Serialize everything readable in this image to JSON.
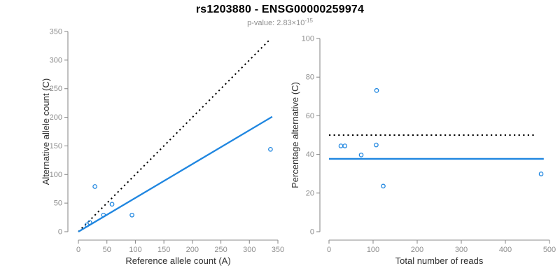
{
  "header": {
    "title": "rs1203880 - ENSG00000259974",
    "subtitle_prefix": "p-value: 2.83×10",
    "subtitle_exponent": "-15"
  },
  "colors": {
    "point": "#1f86e0",
    "fit_line": "#1f86e0",
    "reference_line": "#000000",
    "axis": "#8e8e8e",
    "tick_label": "#8e8e8e",
    "axis_title": "#2e2e2e",
    "subtitle": "#8e8e8e"
  },
  "chart_data": [
    {
      "type": "scatter",
      "xlabel": "Reference allele count (A)",
      "ylabel": "Alternative allele count (C)",
      "xlim": [
        0,
        350
      ],
      "ylim": [
        0,
        350
      ],
      "xticks": [
        0,
        50,
        100,
        150,
        200,
        250,
        300,
        350
      ],
      "yticks": [
        0,
        50,
        100,
        150,
        200,
        250,
        300,
        350
      ],
      "grid": false,
      "legend": "none",
      "points": [
        [
          15,
          12
        ],
        [
          20,
          16
        ],
        [
          29,
          79
        ],
        [
          44,
          29
        ],
        [
          59,
          48
        ],
        [
          94,
          29
        ],
        [
          337,
          144
        ]
      ],
      "lines": [
        {
          "name": "identity-line",
          "style": "dotted",
          "color": "#000000",
          "from": [
            0,
            0
          ],
          "to": [
            337,
            337
          ]
        },
        {
          "name": "fit-line",
          "style": "solid",
          "color": "#1f86e0",
          "from": [
            0,
            0
          ],
          "to": [
            340,
            201
          ]
        }
      ]
    },
    {
      "type": "scatter",
      "xlabel": "Total number of reads",
      "ylabel": "Percentage alternative (C)",
      "xlim": [
        0,
        500
      ],
      "ylim": [
        0,
        100
      ],
      "xticks": [
        0,
        100,
        200,
        300,
        400,
        500
      ],
      "yticks": [
        0,
        20,
        40,
        60,
        80,
        100
      ],
      "grid": false,
      "legend": "none",
      "points": [
        [
          27,
          44.4
        ],
        [
          36,
          44.4
        ],
        [
          73,
          39.7
        ],
        [
          107,
          44.9
        ],
        [
          108,
          73.1
        ],
        [
          123,
          23.6
        ],
        [
          481,
          29.9
        ]
      ],
      "lines": [
        {
          "name": "expected-percentage-line",
          "style": "dotted",
          "color": "#000000",
          "from": [
            0,
            50
          ],
          "to": [
            470,
            50
          ]
        },
        {
          "name": "observed-percentage-line",
          "style": "solid",
          "color": "#1f86e0",
          "from": [
            0,
            37.7
          ],
          "to": [
            487,
            37.7
          ]
        }
      ]
    }
  ]
}
